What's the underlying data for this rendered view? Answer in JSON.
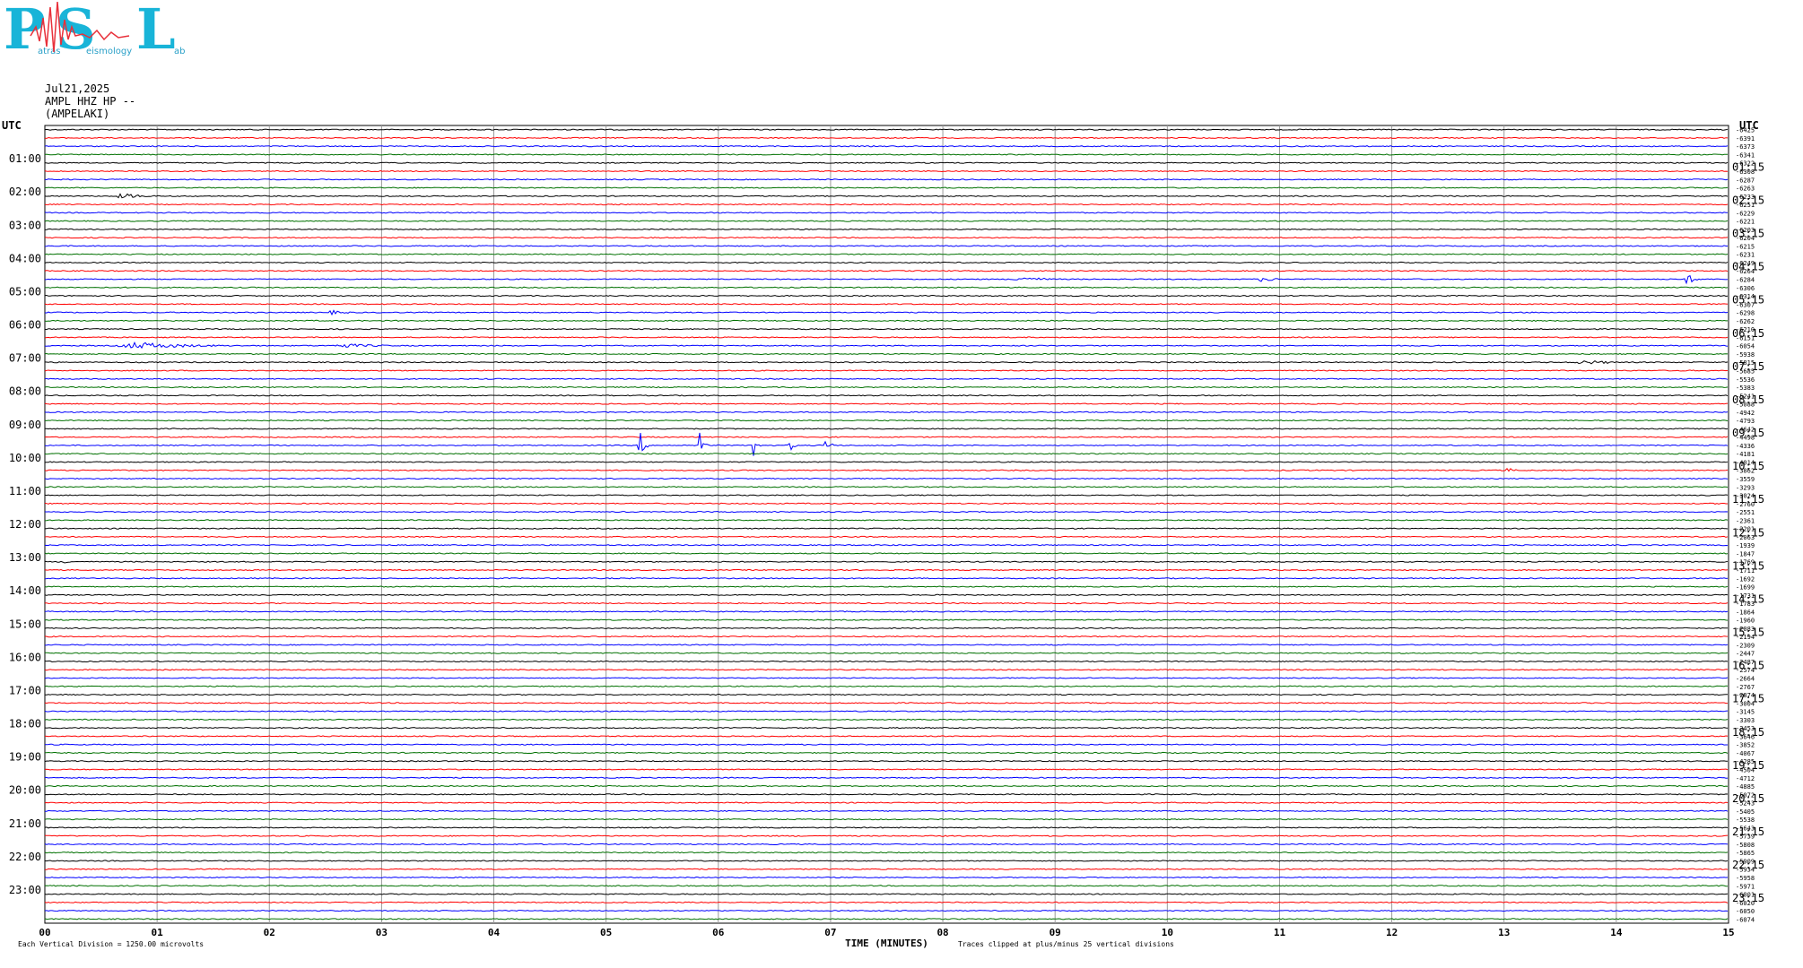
{
  "logo": {
    "letters": [
      "P",
      "S",
      "L"
    ],
    "small_words": [
      "atras",
      "eismology",
      "ab"
    ],
    "colors": {
      "text": "#18b4d8",
      "wave": "#e8303a"
    }
  },
  "header": {
    "date": "Jul21,2025",
    "station": "AMPL HHZ HP --",
    "name": "(AMPELAKI)"
  },
  "chart_data": {
    "type": "line",
    "title": "",
    "left_axis_title": "UTC",
    "right_axis_title": "UTC",
    "xlabel": "TIME (MINUTES)",
    "x_ticks": [
      "00",
      "01",
      "02",
      "03",
      "04",
      "05",
      "06",
      "07",
      "08",
      "09",
      "10",
      "11",
      "12",
      "13",
      "14",
      "15"
    ],
    "xlim": [
      0,
      15
    ],
    "rows_per_hour": 4,
    "row_minutes": 15,
    "rows": 96,
    "colors_cycle": [
      "#000000",
      "#ff0000",
      "#0000ff",
      "#007000"
    ],
    "left_hour_labels": [
      "01:00",
      "02:00",
      "03:00",
      "04:00",
      "05:00",
      "06:00",
      "07:00",
      "08:00",
      "09:00",
      "10:00",
      "11:00",
      "12:00",
      "13:00",
      "14:00",
      "15:00",
      "16:00",
      "17:00",
      "18:00",
      "19:00",
      "20:00",
      "21:00",
      "22:00",
      "23:00"
    ],
    "right_hour_labels": [
      "01:15",
      "02:15",
      "03:15",
      "04:15",
      "05:15",
      "06:15",
      "07:15",
      "08:15",
      "09:15",
      "10:15",
      "11:15",
      "12:15",
      "13:15",
      "14:15",
      "15:15",
      "16:15",
      "17:15",
      "18:15",
      "19:15",
      "20:15",
      "21:15",
      "22:15",
      "23:15"
    ],
    "row_offsets": [
      "-6425",
      "-6391",
      "-6373",
      "-6341",
      "-6322",
      "-6308",
      "-6287",
      "-6263",
      "-6233",
      "-6251",
      "-6229",
      "-6221",
      "-6203",
      "-6204",
      "-6215",
      "-6231",
      "-6249",
      "-6264",
      "-6284",
      "-6306",
      "-6314",
      "-6307",
      "-6298",
      "-6262",
      "-6210",
      "-6151",
      "-6054",
      "-5938",
      "-5815",
      "-5685",
      "-5536",
      "-5383",
      "-5241",
      "-5088",
      "-4942",
      "-4793",
      "-4642",
      "-4498",
      "-4336",
      "-4181",
      "-4014",
      "-3862",
      "-3559",
      "-3293",
      "-3024",
      "-2760",
      "-2551",
      "-2361",
      "-2201",
      "-2063",
      "-1939",
      "-1847",
      "-1769",
      "-1711",
      "-1692",
      "-1699",
      "-1731",
      "-1783",
      "-1864",
      "-1960",
      "-2083",
      "-2194",
      "-2309",
      "-2447",
      "-2487",
      "-2574",
      "-2664",
      "-2767",
      "-2874",
      "-3004",
      "-3145",
      "-3303",
      "-3453",
      "-3646",
      "-3852",
      "-4067",
      "-4285",
      "-4504",
      "-4712",
      "-4885",
      "-5072",
      "-5243",
      "-5405",
      "-5538",
      "-5643",
      "-5739",
      "-5808",
      "-5865",
      "-5909",
      "-5934",
      "-5958",
      "-5971",
      "-6001",
      "-6020",
      "-6050",
      "-6074"
    ],
    "events": [
      {
        "row": 8,
        "minute": 0.6,
        "duration": 0.6,
        "amp": 6
      },
      {
        "row": 18,
        "minute": 8.6,
        "duration": 0.6,
        "amp": 7
      },
      {
        "row": 18,
        "minute": 10.8,
        "duration": 0.3,
        "amp": 7
      },
      {
        "row": 18,
        "minute": 14.6,
        "duration": 0.2,
        "amp": 12
      },
      {
        "row": 22,
        "minute": 2.5,
        "duration": 0.4,
        "amp": 5
      },
      {
        "row": 26,
        "minute": 0.6,
        "duration": 1.4,
        "amp": 8
      },
      {
        "row": 26,
        "minute": 2.5,
        "duration": 1.0,
        "amp": 5
      },
      {
        "row": 28,
        "minute": 13.6,
        "duration": 0.8,
        "amp": 5
      },
      {
        "row": 38,
        "minute": 5.28,
        "duration": 0.1,
        "amp": 40
      },
      {
        "row": 38,
        "minute": 5.82,
        "duration": 0.08,
        "amp": 35
      },
      {
        "row": 38,
        "minute": 6.3,
        "duration": 0.08,
        "amp": 48
      },
      {
        "row": 38,
        "minute": 6.62,
        "duration": 0.08,
        "amp": 22
      },
      {
        "row": 38,
        "minute": 6.95,
        "duration": 0.08,
        "amp": 55
      },
      {
        "row": 41,
        "minute": 13.0,
        "duration": 0.2,
        "amp": 6
      },
      {
        "row": 52,
        "minute": 0.15,
        "duration": 0.2,
        "amp": 4
      }
    ],
    "grid": true,
    "footer_left": "Each Vertical Division = 1250.00 microvolts",
    "footer_right": "Traces clipped at plus/minus 25 vertical divisions"
  }
}
